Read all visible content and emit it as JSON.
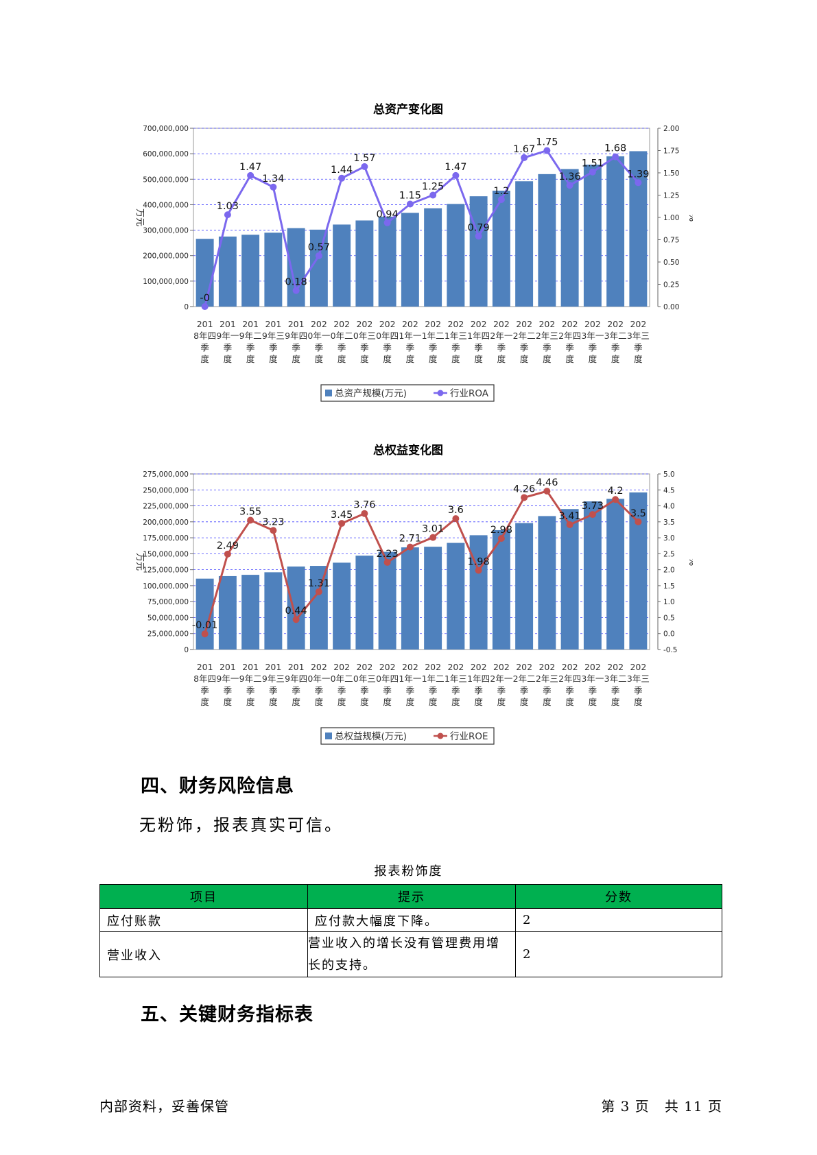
{
  "charts": {
    "assets": {
      "title": "总资产变化图",
      "bar_color": "#4f81bd",
      "line_color": "#7b68ee"
    },
    "equity": {
      "title": "总权益变化图",
      "bar_color": "#4f81bd",
      "line_color": "#c0504d"
    }
  },
  "chart_data": [
    {
      "type": "bar",
      "title": "总资产变化图",
      "ylabel": "万元",
      "y2label": "%",
      "ylim": [
        0,
        700000000
      ],
      "y2lim": [
        0,
        2.0
      ],
      "y_ticks": [
        "0",
        "100,000,000",
        "200,000,000",
        "300,000,000",
        "400,000,000",
        "500,000,000",
        "600,000,000",
        "700,000,000"
      ],
      "y2_ticks": [
        "0.00",
        "0.25",
        "0.50",
        "0.75",
        "1.00",
        "1.25",
        "1.50",
        "1.75",
        "2.00"
      ],
      "categories": [
        "2018年四季度",
        "2019年一季度",
        "2019年二季度",
        "2019年三季度",
        "2019年四季度",
        "2020年一季度",
        "2020年二季度",
        "2020年三季度",
        "2020年四季度",
        "2021年一季度",
        "2021年二季度",
        "2021年三季度",
        "2021年四季度",
        "2022年一季度",
        "2022年二季度",
        "2022年三季度",
        "2022年四季度",
        "2023年一季度",
        "2023年二季度",
        "2023年三季度"
      ],
      "series": [
        {
          "name": "总资产规模(万元)",
          "axis": "left",
          "kind": "bar",
          "values": [
            266000000,
            275000000,
            282000000,
            290000000,
            308000000,
            302000000,
            322000000,
            338000000,
            353000000,
            368000000,
            386000000,
            403000000,
            433000000,
            455000000,
            492000000,
            520000000,
            540000000,
            557000000,
            590000000,
            610000000
          ]
        },
        {
          "name": "行业ROA",
          "axis": "right",
          "kind": "line",
          "values": [
            0,
            1.03,
            1.47,
            1.34,
            0.18,
            0.57,
            1.44,
            1.57,
            0.94,
            1.15,
            1.25,
            1.47,
            0.79,
            1.2,
            1.67,
            1.75,
            1.36,
            1.51,
            1.68,
            1.39
          ],
          "labels": [
            "-0",
            "1.03",
            "1.47",
            "1.34",
            "0.18",
            "0.57",
            "1.44",
            "1.57",
            "0.94",
            "1.15",
            "1.25",
            "1.47",
            "0.79",
            "1.2",
            "1.67",
            "1.75",
            "1.36",
            "1.51",
            "1.68",
            "1.39"
          ]
        }
      ],
      "legend": "bottom",
      "grid": true
    },
    {
      "type": "bar",
      "title": "总权益变化图",
      "ylabel": "万元",
      "y2label": "%",
      "ylim": [
        0,
        275000000
      ],
      "y2lim": [
        -0.5,
        5.0
      ],
      "y_ticks": [
        "0",
        "25,000,000",
        "50,000,000",
        "75,000,000",
        "100,000,000",
        "125,000,000",
        "150,000,000",
        "175,000,000",
        "200,000,000",
        "225,000,000",
        "250,000,000",
        "275,000,000"
      ],
      "y2_ticks": [
        "-0.5",
        "0.0",
        "0.5",
        "1.0",
        "1.5",
        "2.0",
        "2.5",
        "3.0",
        "3.5",
        "4.0",
        "4.5",
        "5.0"
      ],
      "categories": [
        "2018年四季度",
        "2019年一季度",
        "2019年二季度",
        "2019年三季度",
        "2019年四季度",
        "2020年一季度",
        "2020年二季度",
        "2020年三季度",
        "2020年四季度",
        "2021年一季度",
        "2021年二季度",
        "2021年三季度",
        "2021年四季度",
        "2022年一季度",
        "2022年二季度",
        "2022年三季度",
        "2022年四季度",
        "2023年一季度",
        "2023年二季度",
        "2023年三季度"
      ],
      "series": [
        {
          "name": "总权益规模(万元)",
          "axis": "left",
          "kind": "bar",
          "values": [
            111000000,
            115000000,
            117000000,
            121000000,
            130000000,
            131000000,
            136000000,
            147000000,
            153000000,
            160000000,
            161000000,
            167000000,
            179000000,
            187000000,
            198000000,
            209000000,
            220000000,
            232000000,
            236000000,
            246000000
          ]
        },
        {
          "name": "行业ROE",
          "axis": "right",
          "kind": "line",
          "values": [
            -0.01,
            2.49,
            3.55,
            3.23,
            0.44,
            1.31,
            3.45,
            3.76,
            2.23,
            2.71,
            3.01,
            3.6,
            1.98,
            2.98,
            4.26,
            4.46,
            3.41,
            3.73,
            4.2,
            3.5
          ],
          "labels": [
            "-0.01",
            "2.49",
            "3.55",
            "3.23",
            "0.44",
            "1.31",
            "3.45",
            "3.76",
            "2.23",
            "2.71",
            "3.01",
            "3.6",
            "1.98",
            "2.98",
            "4.26",
            "4.46",
            "3.41",
            "3.73",
            "4.2",
            "3.5"
          ]
        }
      ],
      "legend": "bottom",
      "grid": true
    }
  ],
  "section4": {
    "heading": "四、财务风险信息",
    "paragraph": "无粉饰，报表真实可信。",
    "table_caption": "报表粉饰度",
    "table_headers": [
      "项目",
      "提示",
      "分数"
    ],
    "table_rows": [
      [
        "应付账款",
        "应付款大幅度下降。",
        "2"
      ],
      [
        "营业收入",
        "营业收入的增长没有管理费用增长的支持。",
        "2"
      ]
    ],
    "header_color": "#00b050"
  },
  "section5": {
    "heading": "五、关键财务指标表"
  },
  "footer": {
    "left": "内部资料，妥善保管",
    "right": "第 3 页   共 11 页"
  }
}
